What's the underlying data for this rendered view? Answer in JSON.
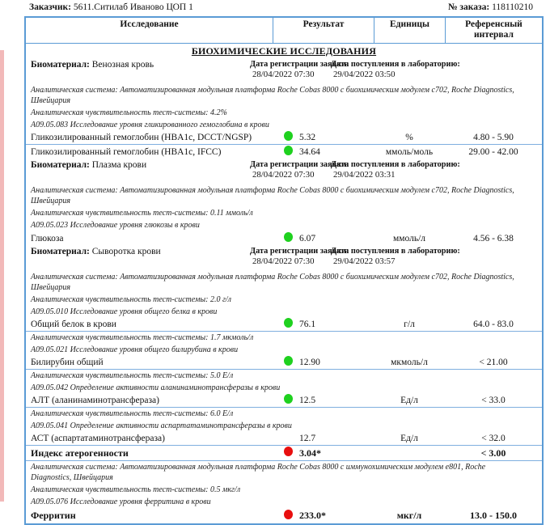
{
  "page": {
    "customer_label": "Заказчик:",
    "customer_value": "5611.Ситилаб Иваново ЦОП 1",
    "order_label": "№ заказа:",
    "order_value": "118110210"
  },
  "colors": {
    "green": "#1fd11f",
    "red": "#e80f0f",
    "border_blue": "#5b9bd5"
  },
  "table": {
    "headers": [
      "Исследование",
      "Результат",
      "Единицы",
      "Референсный интервал"
    ],
    "group_title": "БИОХИМИЧЕСКИЕ ИССЛЕДОВАНИЯ"
  },
  "labels": {
    "biomaterial": "Биоматериал:",
    "reg_date": "Дата регистрации заявки:",
    "lab_date": "Дата поступления в лабораторию:"
  },
  "sections": [
    {
      "biomaterial": "Венозная кровь",
      "reg_value": "28/04/2022 07:30",
      "lab_value": "29/04/2022 03:50",
      "items": [
        {
          "type": "note",
          "text": "Аналитическая система: Автоматизированная модульная платформа Roche Cobas 8000 с биохимическим модулем с702, Roche Diagnostics, Швейцария"
        },
        {
          "type": "note",
          "text": "Аналитическая чувствительность тест-системы: 4.2%"
        },
        {
          "type": "note",
          "text": "A09.05.083 Исследование уровня гликированного гемоглобина в крови"
        },
        {
          "type": "row",
          "name": "Гликозилированный гемоглобин (HBA1c, DCCT/NGSP)",
          "marker": "green",
          "result": "5.32",
          "units": "%",
          "ref": "4.80 - 5.90",
          "bold": false
        },
        {
          "type": "row",
          "name": "Гликозилированный гемоглобин (HBA1c, IFCC)",
          "marker": "green",
          "result": "34.64",
          "units": "ммоль/моль",
          "ref": "29.00 - 42.00",
          "bold": false
        }
      ]
    },
    {
      "biomaterial": "Плазма крови",
      "reg_value": "28/04/2022 07:30",
      "lab_value": "29/04/2022 03:31",
      "items": [
        {
          "type": "note",
          "text": "Аналитическая система: Автоматизированная модульная платформа Roche Cobas 8000 с биохимическим модулем с702, Roche Diagnostics, Швейцария"
        },
        {
          "type": "note",
          "text": "Аналитическая чувствительность тест-системы: 0.11 ммоль/л"
        },
        {
          "type": "note",
          "text": "A09.05.023 Исследование уровня глюкозы в крови"
        },
        {
          "type": "row",
          "name": "Глюкоза",
          "marker": "green",
          "result": "6.07",
          "units": "ммоль/л",
          "ref": "4.56 - 6.38",
          "bold": false
        }
      ]
    },
    {
      "biomaterial": "Сыворотка крови",
      "reg_value": "28/04/2022 07:30",
      "lab_value": "29/04/2022 03:57",
      "items": [
        {
          "type": "note",
          "text": "Аналитическая система: Автоматизированная модульная платформа Roche Cobas 8000 с биохимическим модулем с702, Roche Diagnostics, Швейцария"
        },
        {
          "type": "note",
          "text": "Аналитическая чувствительность тест-системы: 2.0 г/л"
        },
        {
          "type": "note",
          "text": "A09.05.010 Исследование уровня общего белка в крови"
        },
        {
          "type": "row",
          "name": "Общий белок в крови",
          "marker": "green",
          "result": "76.1",
          "units": "г/л",
          "ref": "64.0 - 83.0",
          "bold": false
        },
        {
          "type": "note",
          "text": "Аналитическая чувствительность тест-системы: 1.7 мкмоль/л"
        },
        {
          "type": "note",
          "text": "A09.05.021 Исследование уровня общего билирубина в крови"
        },
        {
          "type": "row",
          "name": "Билирубин общий",
          "marker": "green",
          "result": "12.90",
          "units": "мкмоль/л",
          "ref": "< 21.00",
          "bold": false
        },
        {
          "type": "note",
          "text": "Аналитическая чувствительность тест-системы: 5.0 Е/л"
        },
        {
          "type": "note",
          "text": "A09.05.042 Определение активности аланинаминотрансферазы в крови"
        },
        {
          "type": "row",
          "name": "АЛТ (аланинаминотрансфераза)",
          "marker": "green",
          "result": "12.5",
          "units": "Ед/л",
          "ref": "< 33.0",
          "bold": false
        },
        {
          "type": "note",
          "text": "Аналитическая чувствительность тест-системы: 6.0 Е/л"
        },
        {
          "type": "note",
          "text": "A09.05.041 Определение активности аспартатаминотрансферазы в крови"
        },
        {
          "type": "row",
          "name": "АСТ (аспартатаминотрансфераза)",
          "marker": "none",
          "result": "12.7",
          "units": "Ед/л",
          "ref": "< 32.0",
          "bold": false
        },
        {
          "type": "row",
          "name": "Индекс атерогенности",
          "marker": "red",
          "result": "3.04*",
          "units": "",
          "ref": "< 3.00",
          "bold": true
        },
        {
          "type": "note",
          "text": "Аналитическая система: Автоматизированная модульная платформа Roche Cobas 8000 с иммунохимическим модулем e801, Roche Diagnostics, Швейцария"
        },
        {
          "type": "note",
          "text": "Аналитическая чувствительность тест-системы: 0.5 мкг/л"
        },
        {
          "type": "note",
          "text": "A09.05.076 Исследование уровня ферритина в крови"
        },
        {
          "type": "row",
          "name": "Ферритин",
          "marker": "red",
          "result": "233.0*",
          "units": "мкг/л",
          "ref": "13.0 - 150.0",
          "bold": true
        }
      ]
    }
  ]
}
